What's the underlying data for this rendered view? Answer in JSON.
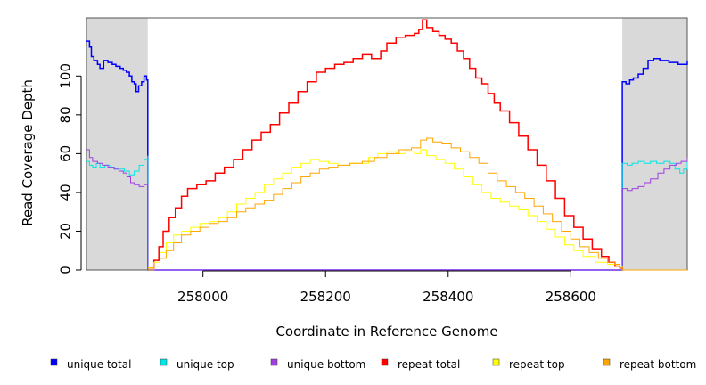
{
  "chart_data": {
    "type": "line",
    "title": "",
    "xlabel": "Coordinate in Reference Genome",
    "ylabel": "Read Coverage Depth",
    "xlim": [
      257810,
      258790
    ],
    "ylim": [
      0,
      130
    ],
    "xticks": [
      258000,
      258200,
      258400,
      258600
    ],
    "xtick_labels": [
      "258000",
      "258200",
      "258400",
      "258600"
    ],
    "yticks": [
      0,
      20,
      40,
      60,
      80,
      100
    ],
    "ytick_labels": [
      "0",
      "20",
      "40",
      "60",
      "80",
      "100"
    ],
    "grid": false,
    "legend_position": "bottom",
    "shaded_regions": [
      {
        "x0": 257810,
        "x1": 257910,
        "color": "#d9d9d9"
      },
      {
        "x0": 258684,
        "x1": 258790,
        "color": "#d9d9d9"
      }
    ],
    "series": [
      {
        "name": "unique total",
        "color": "#0000ff",
        "points": [
          [
            257810,
            118
          ],
          [
            257815,
            115
          ],
          [
            257818,
            110
          ],
          [
            257822,
            108
          ],
          [
            257828,
            106
          ],
          [
            257832,
            104
          ],
          [
            257838,
            108
          ],
          [
            257845,
            107
          ],
          [
            257852,
            106
          ],
          [
            257858,
            105
          ],
          [
            257865,
            104
          ],
          [
            257870,
            103
          ],
          [
            257875,
            102
          ],
          [
            257880,
            100
          ],
          [
            257884,
            97
          ],
          [
            257888,
            96
          ],
          [
            257891,
            92
          ],
          [
            257895,
            95
          ],
          [
            257900,
            97
          ],
          [
            257904,
            100
          ],
          [
            257908,
            98
          ],
          [
            257910,
            0
          ],
          [
            258684,
            0
          ],
          [
            258684,
            97
          ],
          [
            258690,
            96
          ],
          [
            258696,
            98
          ],
          [
            258702,
            99
          ],
          [
            258710,
            101
          ],
          [
            258718,
            104
          ],
          [
            258726,
            108
          ],
          [
            258735,
            109
          ],
          [
            258745,
            108
          ],
          [
            258760,
            107
          ],
          [
            258775,
            106
          ],
          [
            258790,
            108
          ]
        ]
      },
      {
        "name": "unique top",
        "color": "#00e5e5",
        "points": [
          [
            257810,
            56
          ],
          [
            257815,
            54
          ],
          [
            257820,
            53
          ],
          [
            257826,
            55
          ],
          [
            257832,
            53
          ],
          [
            257840,
            54
          ],
          [
            257848,
            53
          ],
          [
            257856,
            52
          ],
          [
            257864,
            52
          ],
          [
            257872,
            51
          ],
          [
            257880,
            49
          ],
          [
            257888,
            51
          ],
          [
            257896,
            54
          ],
          [
            257904,
            57
          ],
          [
            257910,
            59
          ],
          [
            257910,
            0
          ],
          [
            258684,
            0
          ],
          [
            258684,
            55
          ],
          [
            258692,
            54
          ],
          [
            258700,
            55
          ],
          [
            258710,
            56
          ],
          [
            258720,
            55
          ],
          [
            258730,
            56
          ],
          [
            258740,
            55
          ],
          [
            258752,
            56
          ],
          [
            258762,
            55
          ],
          [
            258770,
            52
          ],
          [
            258778,
            50
          ],
          [
            258784,
            52
          ],
          [
            258790,
            56
          ]
        ]
      },
      {
        "name": "unique bottom",
        "color": "#a040e0",
        "points": [
          [
            257810,
            62
          ],
          [
            257815,
            58
          ],
          [
            257820,
            56
          ],
          [
            257828,
            55
          ],
          [
            257836,
            54
          ],
          [
            257845,
            53
          ],
          [
            257855,
            52
          ],
          [
            257863,
            51
          ],
          [
            257870,
            50
          ],
          [
            257876,
            48
          ],
          [
            257882,
            45
          ],
          [
            257888,
            44
          ],
          [
            257896,
            43
          ],
          [
            257904,
            44
          ],
          [
            257910,
            0
          ],
          [
            258684,
            0
          ],
          [
            258684,
            42
          ],
          [
            258692,
            41
          ],
          [
            258700,
            42
          ],
          [
            258710,
            43
          ],
          [
            258720,
            45
          ],
          [
            258730,
            47
          ],
          [
            258742,
            50
          ],
          [
            258752,
            52
          ],
          [
            258762,
            54
          ],
          [
            258772,
            55
          ],
          [
            258780,
            56
          ],
          [
            258790,
            58
          ]
        ]
      },
      {
        "name": "repeat total",
        "color": "#ff0000",
        "points": [
          [
            257910,
            1
          ],
          [
            257920,
            5
          ],
          [
            257928,
            12
          ],
          [
            257935,
            20
          ],
          [
            257945,
            27
          ],
          [
            257955,
            32
          ],
          [
            257965,
            38
          ],
          [
            257975,
            42
          ],
          [
            257990,
            44
          ],
          [
            258005,
            46
          ],
          [
            258020,
            50
          ],
          [
            258035,
            53
          ],
          [
            258050,
            57
          ],
          [
            258065,
            62
          ],
          [
            258080,
            67
          ],
          [
            258095,
            71
          ],
          [
            258110,
            75
          ],
          [
            258125,
            81
          ],
          [
            258140,
            86
          ],
          [
            258155,
            92
          ],
          [
            258170,
            97
          ],
          [
            258185,
            102
          ],
          [
            258200,
            104
          ],
          [
            258215,
            106
          ],
          [
            258230,
            107
          ],
          [
            258245,
            109
          ],
          [
            258260,
            111
          ],
          [
            258275,
            109
          ],
          [
            258290,
            113
          ],
          [
            258300,
            117
          ],
          [
            258315,
            120
          ],
          [
            258330,
            121
          ],
          [
            258345,
            122
          ],
          [
            258352,
            124
          ],
          [
            258358,
            129
          ],
          [
            258365,
            125
          ],
          [
            258375,
            123
          ],
          [
            258385,
            121
          ],
          [
            258395,
            119
          ],
          [
            258405,
            117
          ],
          [
            258415,
            113
          ],
          [
            258425,
            109
          ],
          [
            258435,
            104
          ],
          [
            258445,
            99
          ],
          [
            258455,
            96
          ],
          [
            258465,
            91
          ],
          [
            258475,
            86
          ],
          [
            258485,
            82
          ],
          [
            258500,
            76
          ],
          [
            258515,
            69
          ],
          [
            258530,
            62
          ],
          [
            258545,
            54
          ],
          [
            258560,
            46
          ],
          [
            258575,
            37
          ],
          [
            258590,
            28
          ],
          [
            258605,
            22
          ],
          [
            258620,
            16
          ],
          [
            258635,
            11
          ],
          [
            258650,
            7
          ],
          [
            258662,
            4
          ],
          [
            258672,
            2
          ],
          [
            258680,
            1
          ],
          [
            258684,
            0
          ]
        ]
      },
      {
        "name": "repeat top",
        "color": "#ffff00",
        "points": [
          [
            257910,
            1
          ],
          [
            257920,
            4
          ],
          [
            257930,
            9
          ],
          [
            257940,
            14
          ],
          [
            257952,
            18
          ],
          [
            257965,
            20
          ],
          [
            257980,
            22
          ],
          [
            257995,
            24
          ],
          [
            258010,
            25
          ],
          [
            258025,
            27
          ],
          [
            258040,
            30
          ],
          [
            258055,
            34
          ],
          [
            258070,
            37
          ],
          [
            258085,
            40
          ],
          [
            258100,
            44
          ],
          [
            258115,
            47
          ],
          [
            258130,
            50
          ],
          [
            258145,
            53
          ],
          [
            258160,
            55
          ],
          [
            258175,
            57
          ],
          [
            258190,
            56
          ],
          [
            258205,
            55
          ],
          [
            258220,
            54
          ],
          [
            258240,
            55
          ],
          [
            258255,
            55
          ],
          [
            258270,
            58
          ],
          [
            258285,
            60
          ],
          [
            258300,
            61
          ],
          [
            258315,
            60
          ],
          [
            258330,
            61
          ],
          [
            258345,
            60
          ],
          [
            258355,
            62
          ],
          [
            258365,
            59
          ],
          [
            258380,
            57
          ],
          [
            258395,
            55
          ],
          [
            258410,
            52
          ],
          [
            258425,
            48
          ],
          [
            258440,
            44
          ],
          [
            258455,
            40
          ],
          [
            258470,
            37
          ],
          [
            258485,
            35
          ],
          [
            258500,
            33
          ],
          [
            258515,
            31
          ],
          [
            258530,
            28
          ],
          [
            258545,
            25
          ],
          [
            258560,
            21
          ],
          [
            258575,
            17
          ],
          [
            258590,
            13
          ],
          [
            258605,
            10
          ],
          [
            258620,
            7
          ],
          [
            258640,
            4
          ],
          [
            258660,
            3
          ],
          [
            258675,
            2
          ],
          [
            258684,
            0
          ]
        ]
      },
      {
        "name": "repeat bottom",
        "color": "#ffa500",
        "points": [
          [
            257910,
            0
          ],
          [
            257920,
            2
          ],
          [
            257930,
            6
          ],
          [
            257940,
            10
          ],
          [
            257952,
            14
          ],
          [
            257965,
            18
          ],
          [
            257980,
            20
          ],
          [
            257995,
            22
          ],
          [
            258010,
            24
          ],
          [
            258025,
            25
          ],
          [
            258040,
            27
          ],
          [
            258055,
            30
          ],
          [
            258070,
            32
          ],
          [
            258085,
            34
          ],
          [
            258100,
            36
          ],
          [
            258115,
            39
          ],
          [
            258130,
            42
          ],
          [
            258145,
            45
          ],
          [
            258160,
            48
          ],
          [
            258175,
            50
          ],
          [
            258190,
            52
          ],
          [
            258205,
            53
          ],
          [
            258220,
            54
          ],
          [
            258240,
            55
          ],
          [
            258260,
            56
          ],
          [
            258280,
            58
          ],
          [
            258300,
            60
          ],
          [
            258320,
            62
          ],
          [
            258340,
            63
          ],
          [
            258355,
            67
          ],
          [
            258365,
            68
          ],
          [
            258375,
            66
          ],
          [
            258390,
            65
          ],
          [
            258405,
            63
          ],
          [
            258420,
            61
          ],
          [
            258435,
            58
          ],
          [
            258450,
            55
          ],
          [
            258465,
            50
          ],
          [
            258480,
            46
          ],
          [
            258495,
            43
          ],
          [
            258510,
            40
          ],
          [
            258525,
            37
          ],
          [
            258540,
            33
          ],
          [
            258555,
            29
          ],
          [
            258570,
            25
          ],
          [
            258585,
            20
          ],
          [
            258600,
            16
          ],
          [
            258615,
            12
          ],
          [
            258630,
            9
          ],
          [
            258645,
            6
          ],
          [
            258660,
            4
          ],
          [
            258672,
            3
          ],
          [
            258680,
            1
          ],
          [
            258684,
            0
          ],
          [
            258790,
            0
          ]
        ]
      }
    ]
  }
}
